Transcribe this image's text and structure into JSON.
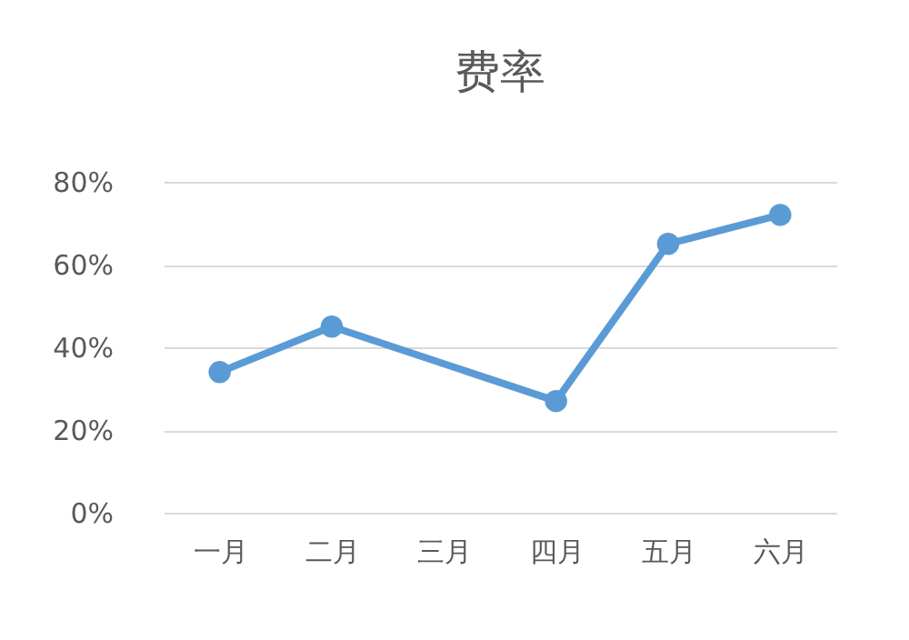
{
  "chart_data": {
    "type": "line",
    "title": "费率",
    "categories": [
      "一月",
      "二月",
      "三月",
      "四月",
      "五月",
      "六月"
    ],
    "series": [
      {
        "color": "#5b9bd5",
        "values": [
          34,
          45,
          null,
          27,
          65,
          72
        ]
      }
    ],
    "ylim": [
      0,
      80
    ],
    "yticks": [
      {
        "value": 0,
        "label": "0%"
      },
      {
        "value": 20,
        "label": "20%"
      },
      {
        "value": 40,
        "label": "40%"
      },
      {
        "value": 60,
        "label": "60%"
      },
      {
        "value": 80,
        "label": "80%"
      }
    ],
    "grid": "y",
    "marker": "circle",
    "line_style": "solid",
    "legend": false
  }
}
